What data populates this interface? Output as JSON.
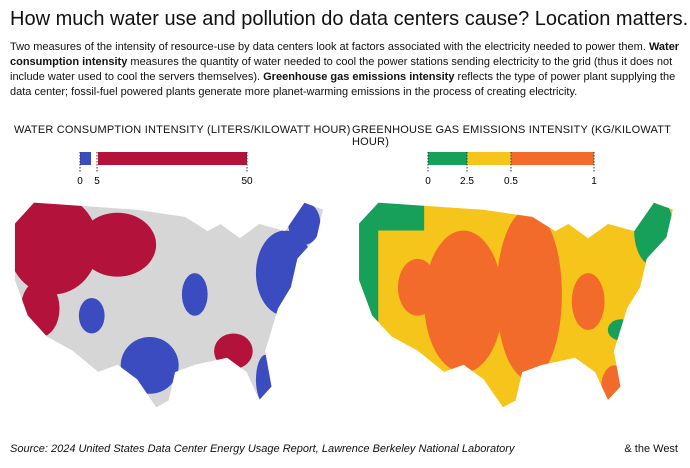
{
  "header": {
    "title": "How much water use and pollution do data centers cause? Location matters.",
    "intro": [
      {
        "text": "Two measures of the intensity of resource-use by data centers look at factors associated with the electricity needed to power them. ",
        "bold": false
      },
      {
        "text": "Water consumption intensity",
        "bold": true
      },
      {
        "text": " measures the quantity of water needed to cool the power stations sending electricity to the grid (thus it does not include water used to cool the servers themselves). ",
        "bold": false
      },
      {
        "text": "Greenhouse gas emissions intensity",
        "bold": true
      },
      {
        "text": " reflects the type of power plant supplying the data center; fossil-fuel powered plants generate more planet-warming emissions in the process of creating electricity.",
        "bold": false
      }
    ]
  },
  "panels": [
    {
      "title": "WATER CONSUMPTION INTENSITY (LITERS/KILOWATT HOUR)",
      "legend": {
        "ticks": [
          "0",
          "5",
          "50"
        ],
        "colors": [
          "#3b4cc0",
          "#b3123b"
        ]
      }
    },
    {
      "title": "GREENHOUSE GAS EMISSIONS INTENSITY (KG/KILOWATT HOUR)",
      "legend": {
        "ticks": [
          "0",
          "2.5",
          "0.5",
          "1"
        ],
        "colors": [
          "#16a05a",
          "#f6c51b",
          "#f36b2b"
        ]
      }
    }
  ],
  "footer": {
    "source": "Source: 2024 United States Data Center Energy Usage Report, Lawrence Berkeley National Laboratory",
    "credit": "& the West"
  }
}
